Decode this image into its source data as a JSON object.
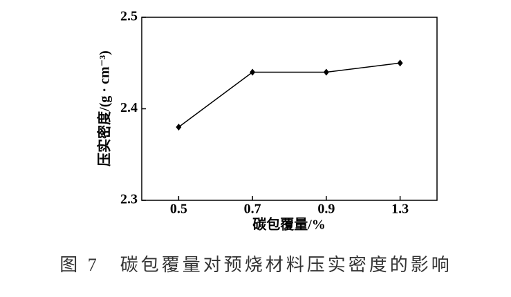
{
  "chart_data": {
    "type": "line",
    "title": "图 7　碳包覆量对预烧材料压实密度的影响",
    "x_label": "碳包覆量/%",
    "y_label": "压实密度/(g · cm⁻³)",
    "categories": [
      "0.5",
      "0.7",
      "0.9",
      "1.3"
    ],
    "values": [
      2.38,
      2.44,
      2.44,
      2.45
    ],
    "color": "#000000",
    "ylim": [
      2.3,
      2.5
    ],
    "yticks": [
      2.3,
      2.4,
      2.5
    ]
  }
}
